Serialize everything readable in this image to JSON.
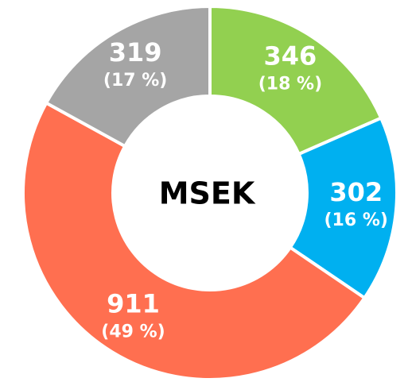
{
  "chart_data": {
    "type": "pie",
    "donut": true,
    "center_label": "MSEK",
    "values": [
      346,
      302,
      911,
      319
    ],
    "shares": [
      18,
      16,
      49,
      17
    ],
    "share_labels": [
      "(18 %)",
      "(16 %)",
      "(49 %)",
      "(17 %)"
    ],
    "colors": [
      "#92d050",
      "#00b0f0",
      "#ff6f50",
      "#a5a5a5"
    ],
    "start_angle": 0,
    "direction": "clockwise"
  }
}
